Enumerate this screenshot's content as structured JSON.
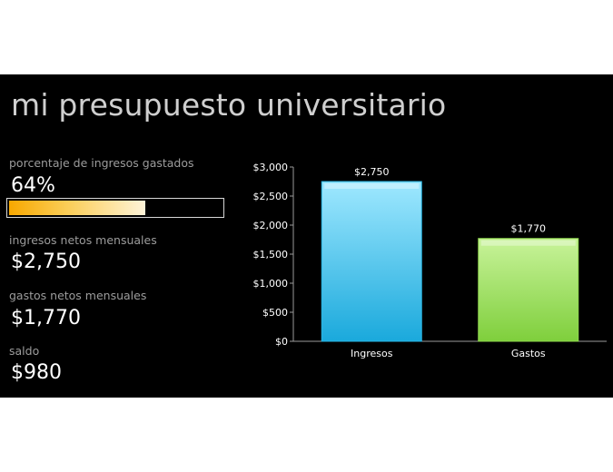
{
  "slide": {
    "title": "mi presupuesto universitario",
    "background": "#000000"
  },
  "metrics": {
    "percent_label": "porcentaje de ingresos gastados",
    "percent_value": "64%",
    "percent_fraction": 0.64,
    "income_label": "ingresos netos mensuales",
    "income_value": "$2,750",
    "expenses_label": "gastos netos mensuales",
    "expenses_value": "$1,770",
    "balance_label": "saldo",
    "balance_value": "$980"
  },
  "colors": {
    "progress_start": "#f7a800",
    "progress_end": "#fdf3d8",
    "income_bar": "#29b7e6",
    "expenses_bar": "#8fd84e"
  },
  "chart_data": {
    "type": "bar",
    "categories": [
      "Ingresos",
      "Gastos"
    ],
    "values": [
      2750,
      1770
    ],
    "data_labels": [
      "$2,750",
      "$1,770"
    ],
    "ylim": [
      0,
      3000
    ],
    "yticks": [
      0,
      500,
      1000,
      1500,
      2000,
      2500,
      3000
    ],
    "ytick_labels": [
      "$0",
      "$500",
      "$1,000",
      "$1,500",
      "$2,000",
      "$2,500",
      "$3,000"
    ],
    "grid": false,
    "legend": "none"
  }
}
